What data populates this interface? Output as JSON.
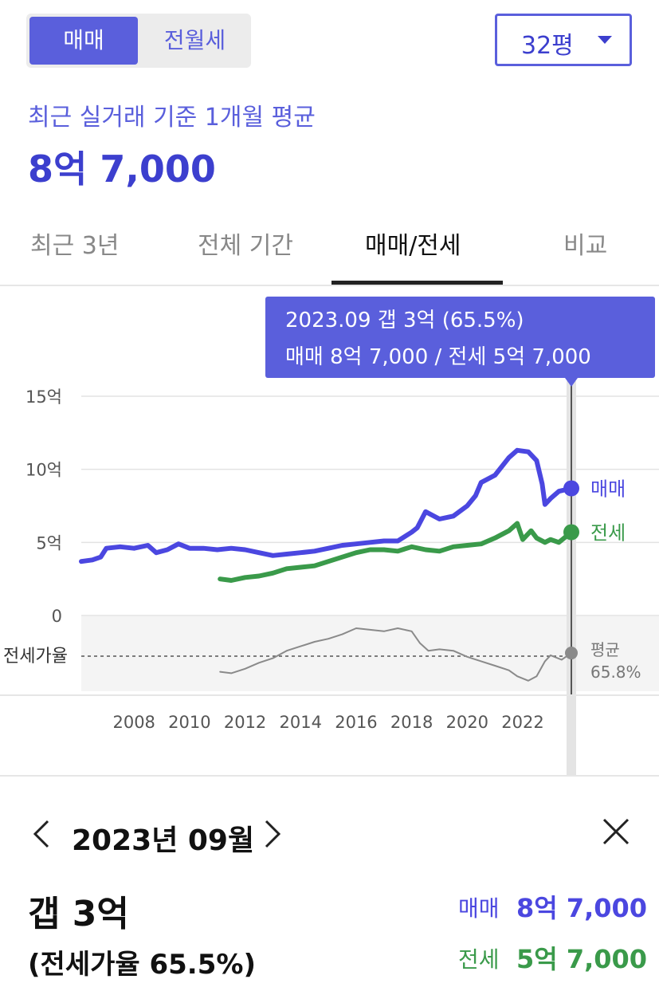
{
  "segment": {
    "active": "매매",
    "inactive": "전월세"
  },
  "size_select": {
    "value": "32평"
  },
  "caption": "최근 실거래 기준 1개월 평균",
  "price": "8억 7,000",
  "tabs": [
    {
      "label": "최근 3년"
    },
    {
      "label": "전체 기간"
    },
    {
      "label": "매매/전세",
      "active": true
    },
    {
      "label": "비교"
    }
  ],
  "tooltip": {
    "line1": "2023.09  갭 3억 (65.5%)",
    "line2": "매매 8억 7,000 / 전세 5억 7,000"
  },
  "detail": {
    "month": "2023년 09월",
    "gap": "갭 3억",
    "ratio": "(전세가율 65.5%)",
    "sale_label": "매매",
    "sale_value": "8억 7,000",
    "jeonse_label": "전세",
    "jeonse_value": "5억 7,000"
  },
  "colors": {
    "sale": "#4b47e0",
    "jeonse": "#3a9a4a",
    "ratio": "#8a8a8a",
    "accent": "#5a5fdc"
  },
  "chart_data": {
    "type": "line",
    "y_ticks": [
      "15억",
      "10억",
      "5억",
      "0"
    ],
    "y_tick_values": [
      15,
      10,
      5,
      0
    ],
    "ylim": [
      0,
      15
    ],
    "x_ticks": [
      "2008",
      "2010",
      "2012",
      "2014",
      "2016",
      "2018",
      "2020",
      "2022"
    ],
    "x_tick_values": [
      2008,
      2010,
      2012,
      2014,
      2016,
      2018,
      2020,
      2022
    ],
    "xlim": [
      2006.1,
      2023.75
    ],
    "ratio_band_label": "전세가율",
    "ratio_avg_label": "평균",
    "ratio_avg_value": "65.8%",
    "series": [
      {
        "name": "매매",
        "end_label": "매매",
        "points": [
          [
            2006.1,
            3.7
          ],
          [
            2006.5,
            3.8
          ],
          [
            2006.8,
            4.0
          ],
          [
            2007.0,
            4.6
          ],
          [
            2007.5,
            4.7
          ],
          [
            2008.0,
            4.6
          ],
          [
            2008.5,
            4.8
          ],
          [
            2008.8,
            4.3
          ],
          [
            2009.2,
            4.5
          ],
          [
            2009.6,
            4.9
          ],
          [
            2010.0,
            4.6
          ],
          [
            2010.5,
            4.6
          ],
          [
            2011.0,
            4.5
          ],
          [
            2011.5,
            4.6
          ],
          [
            2012.0,
            4.5
          ],
          [
            2012.5,
            4.3
          ],
          [
            2013.0,
            4.1
          ],
          [
            2013.5,
            4.2
          ],
          [
            2014.0,
            4.3
          ],
          [
            2014.5,
            4.4
          ],
          [
            2015.0,
            4.6
          ],
          [
            2015.5,
            4.8
          ],
          [
            2016.0,
            4.9
          ],
          [
            2016.5,
            5.0
          ],
          [
            2017.0,
            5.1
          ],
          [
            2017.5,
            5.1
          ],
          [
            2018.0,
            5.7
          ],
          [
            2018.2,
            6.0
          ],
          [
            2018.5,
            7.1
          ],
          [
            2019.0,
            6.6
          ],
          [
            2019.5,
            6.8
          ],
          [
            2020.0,
            7.5
          ],
          [
            2020.3,
            8.2
          ],
          [
            2020.5,
            9.1
          ],
          [
            2021.0,
            9.6
          ],
          [
            2021.5,
            10.8
          ],
          [
            2021.8,
            11.3
          ],
          [
            2022.2,
            11.2
          ],
          [
            2022.5,
            10.6
          ],
          [
            2022.7,
            9.0
          ],
          [
            2022.8,
            7.6
          ],
          [
            2023.0,
            8.0
          ],
          [
            2023.3,
            8.5
          ],
          [
            2023.75,
            8.7
          ]
        ]
      },
      {
        "name": "전세",
        "end_label": "전세",
        "points": [
          [
            2011.1,
            2.5
          ],
          [
            2011.5,
            2.4
          ],
          [
            2012.0,
            2.6
          ],
          [
            2012.5,
            2.7
          ],
          [
            2013.0,
            2.9
          ],
          [
            2013.5,
            3.2
          ],
          [
            2014.0,
            3.3
          ],
          [
            2014.5,
            3.4
          ],
          [
            2015.0,
            3.7
          ],
          [
            2015.5,
            4.0
          ],
          [
            2016.0,
            4.3
          ],
          [
            2016.5,
            4.5
          ],
          [
            2017.0,
            4.5
          ],
          [
            2017.5,
            4.4
          ],
          [
            2018.0,
            4.7
          ],
          [
            2018.5,
            4.5
          ],
          [
            2019.0,
            4.4
          ],
          [
            2019.5,
            4.7
          ],
          [
            2020.0,
            4.8
          ],
          [
            2020.5,
            4.9
          ],
          [
            2021.0,
            5.3
          ],
          [
            2021.5,
            5.8
          ],
          [
            2021.8,
            6.3
          ],
          [
            2022.0,
            5.2
          ],
          [
            2022.3,
            5.8
          ],
          [
            2022.5,
            5.3
          ],
          [
            2022.8,
            5.0
          ],
          [
            2023.0,
            5.2
          ],
          [
            2023.3,
            5.0
          ],
          [
            2023.75,
            5.7
          ]
        ]
      },
      {
        "name": "전세가율",
        "points": [
          [
            2011.1,
            53
          ],
          [
            2011.5,
            52
          ],
          [
            2012.0,
            55
          ],
          [
            2012.5,
            59
          ],
          [
            2013.0,
            62
          ],
          [
            2013.5,
            67
          ],
          [
            2014.0,
            70
          ],
          [
            2014.5,
            73
          ],
          [
            2015.0,
            75
          ],
          [
            2015.5,
            78
          ],
          [
            2016.0,
            82
          ],
          [
            2016.5,
            81
          ],
          [
            2017.0,
            80
          ],
          [
            2017.5,
            82
          ],
          [
            2018.0,
            80
          ],
          [
            2018.3,
            72
          ],
          [
            2018.6,
            67
          ],
          [
            2019.0,
            68
          ],
          [
            2019.5,
            67
          ],
          [
            2020.0,
            63
          ],
          [
            2020.5,
            60
          ],
          [
            2021.0,
            57
          ],
          [
            2021.5,
            54
          ],
          [
            2021.8,
            50
          ],
          [
            2022.2,
            47
          ],
          [
            2022.5,
            50
          ],
          [
            2022.8,
            60
          ],
          [
            2023.0,
            64
          ],
          [
            2023.4,
            61
          ],
          [
            2023.75,
            65.5
          ]
        ]
      }
    ]
  }
}
